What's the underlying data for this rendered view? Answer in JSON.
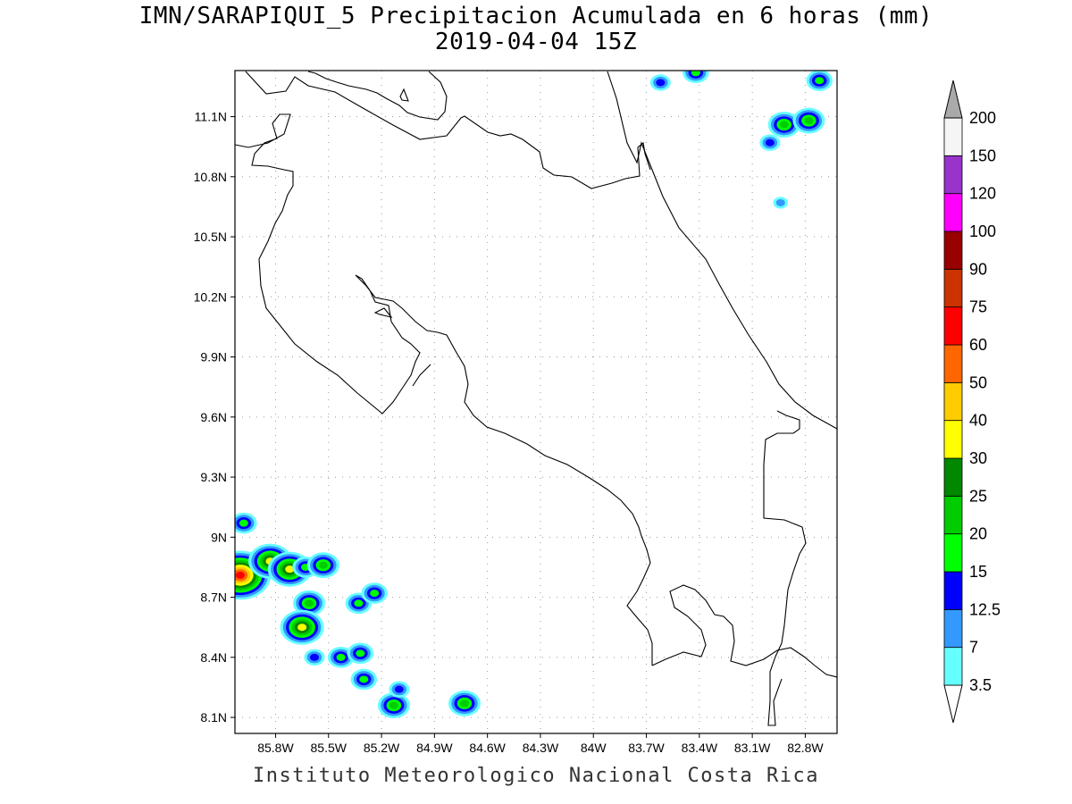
{
  "title": {
    "line1": "IMN/SARAPIQUI_5 Precipitacion Acumulada en 6 horas (mm)",
    "line2": "2019-04-04 15Z"
  },
  "footer": "Instituto Meteorologico Nacional Costa Rica",
  "map": {
    "lon_range": [
      -86.03,
      -82.62
    ],
    "lat_range": [
      8.02,
      11.33
    ],
    "lat_ticks": [
      {
        "value": 11.1,
        "label": "11.1N"
      },
      {
        "value": 10.8,
        "label": "10.8N"
      },
      {
        "value": 10.5,
        "label": "10.5N"
      },
      {
        "value": 10.2,
        "label": "10.2N"
      },
      {
        "value": 9.9,
        "label": "9.9N"
      },
      {
        "value": 9.6,
        "label": "9.6N"
      },
      {
        "value": 9.3,
        "label": "9.3N"
      },
      {
        "value": 9.0,
        "label": "9N"
      },
      {
        "value": 8.7,
        "label": "8.7N"
      },
      {
        "value": 8.4,
        "label": "8.4N"
      },
      {
        "value": 8.1,
        "label": "8.1N"
      }
    ],
    "lon_ticks": [
      {
        "value": -85.8,
        "label": "85.8W"
      },
      {
        "value": -85.5,
        "label": "85.5W"
      },
      {
        "value": -85.2,
        "label": "85.2W"
      },
      {
        "value": -84.9,
        "label": "84.9W"
      },
      {
        "value": -84.6,
        "label": "84.6W"
      },
      {
        "value": -84.3,
        "label": "84.3W"
      },
      {
        "value": -84.0,
        "label": "84W"
      },
      {
        "value": -83.7,
        "label": "83.7W"
      },
      {
        "value": -83.4,
        "label": "83.4W"
      },
      {
        "value": -83.1,
        "label": "83.1W"
      },
      {
        "value": -82.8,
        "label": "82.8W"
      }
    ],
    "grid": "dotted"
  },
  "colorbar": {
    "levels": [
      {
        "label": "3.5",
        "color": "#66ffff"
      },
      {
        "label": "7",
        "color": "#3399ff"
      },
      {
        "label": "12.5",
        "color": "#0000ff"
      },
      {
        "label": "15",
        "color": "#00ff00"
      },
      {
        "label": "20",
        "color": "#00cc00"
      },
      {
        "label": "25",
        "color": "#008800"
      },
      {
        "label": "30",
        "color": "#ffff00"
      },
      {
        "label": "40",
        "color": "#ffcc00"
      },
      {
        "label": "50",
        "color": "#ff6600"
      },
      {
        "label": "60",
        "color": "#ff0000"
      },
      {
        "label": "75",
        "color": "#cc3300"
      },
      {
        "label": "90",
        "color": "#990000"
      },
      {
        "label": "100",
        "color": "#ff00ff"
      },
      {
        "label": "120",
        "color": "#9933cc"
      },
      {
        "label": "150",
        "color": "#f5f5f5"
      },
      {
        "label": "200",
        "color": "#aaaaaa"
      }
    ],
    "low_end_color": "#ffffff",
    "high_end_color": "#aaaaaa"
  },
  "precip_cells": [
    {
      "lon": -86.0,
      "lat": 8.81,
      "level": 9
    },
    {
      "lon": -85.98,
      "lat": 9.07,
      "level": 3
    },
    {
      "lon": -85.83,
      "lat": 8.88,
      "level": 6
    },
    {
      "lon": -85.72,
      "lat": 8.84,
      "level": 6
    },
    {
      "lon": -85.63,
      "lat": 8.85,
      "level": 3
    },
    {
      "lon": -85.53,
      "lat": 8.86,
      "level": 4
    },
    {
      "lon": -85.61,
      "lat": 8.67,
      "level": 4
    },
    {
      "lon": -85.65,
      "lat": 8.55,
      "level": 6
    },
    {
      "lon": -85.33,
      "lat": 8.67,
      "level": 3
    },
    {
      "lon": -85.24,
      "lat": 8.72,
      "level": 3
    },
    {
      "lon": -85.43,
      "lat": 8.4,
      "level": 3
    },
    {
      "lon": -85.32,
      "lat": 8.42,
      "level": 3
    },
    {
      "lon": -85.58,
      "lat": 8.4,
      "level": 2
    },
    {
      "lon": -85.3,
      "lat": 8.29,
      "level": 3
    },
    {
      "lon": -85.13,
      "lat": 8.16,
      "level": 4
    },
    {
      "lon": -85.1,
      "lat": 8.24,
      "level": 2
    },
    {
      "lon": -84.73,
      "lat": 8.17,
      "level": 4
    },
    {
      "lon": -83.42,
      "lat": 11.32,
      "level": 3
    },
    {
      "lon": -83.62,
      "lat": 11.27,
      "level": 2
    },
    {
      "lon": -82.72,
      "lat": 11.28,
      "level": 3
    },
    {
      "lon": -82.92,
      "lat": 11.06,
      "level": 4
    },
    {
      "lon": -82.78,
      "lat": 11.08,
      "level": 4
    },
    {
      "lon": -83.0,
      "lat": 10.97,
      "level": 2
    },
    {
      "lon": -82.94,
      "lat": 10.67,
      "level": 1
    }
  ]
}
